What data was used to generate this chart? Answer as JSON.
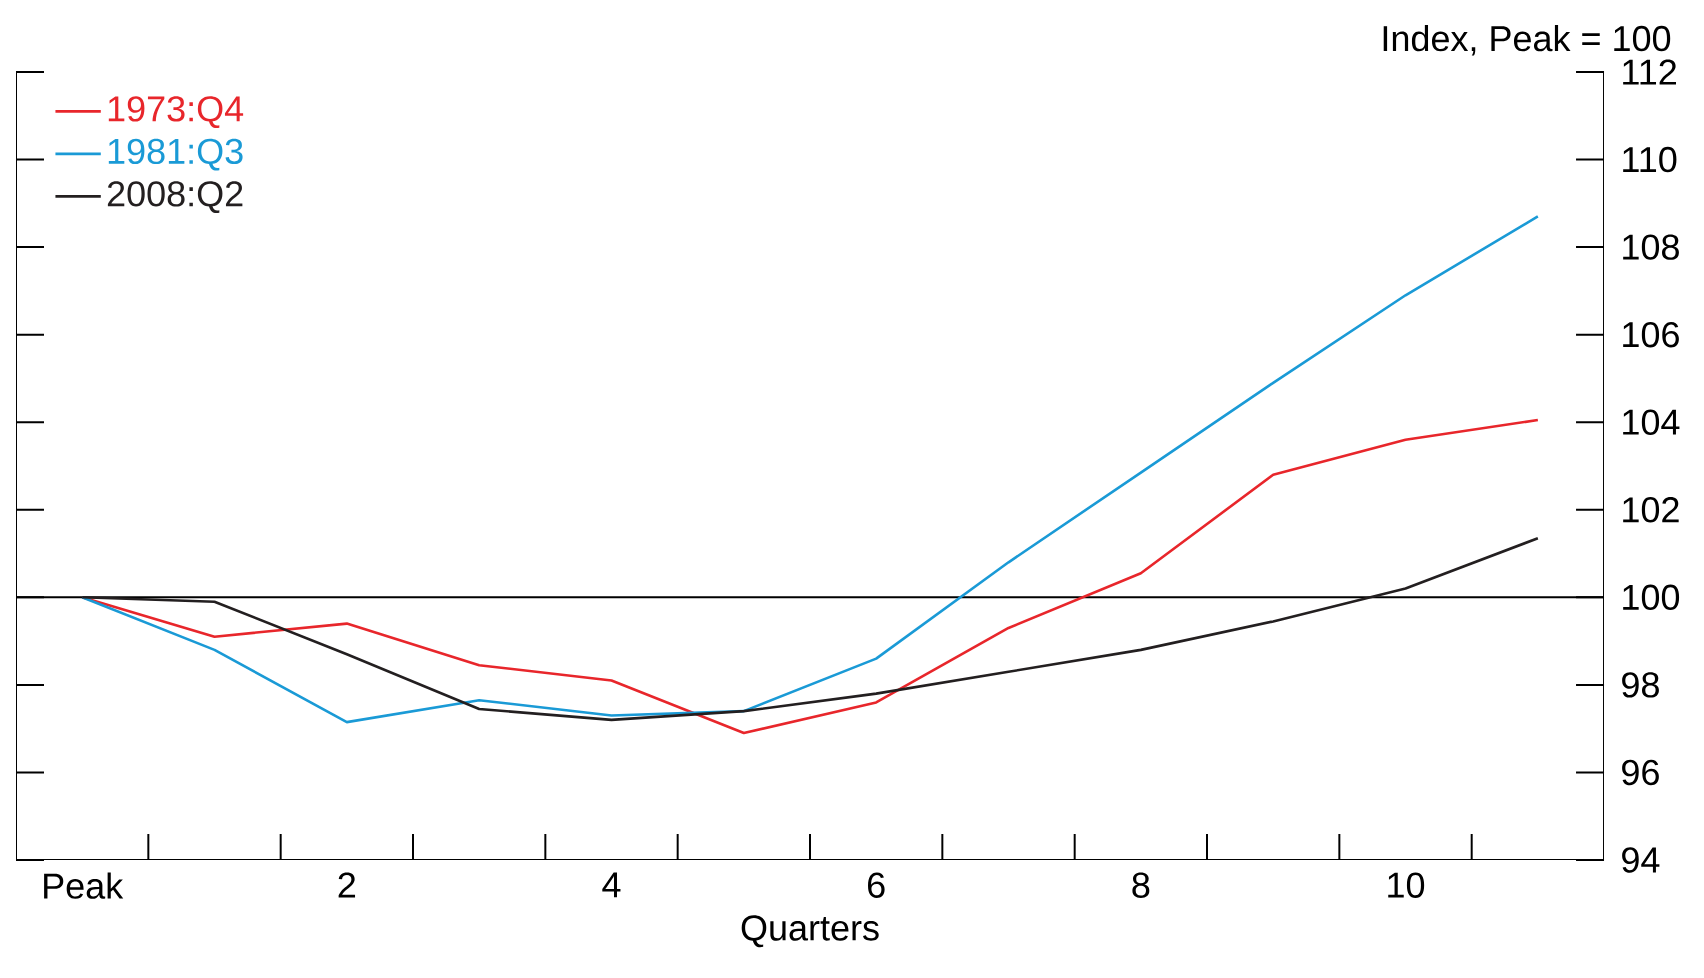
{
  "chart_data": {
    "type": "line",
    "xlabel": "Quarters",
    "ylabel": "Index, Peak = 100",
    "x": [
      0,
      1,
      2,
      3,
      4,
      5,
      6,
      7,
      8,
      9,
      10,
      11
    ],
    "series": [
      {
        "name": "1973:Q4",
        "color": "#e8262b",
        "values": [
          100,
          99.1,
          99.4,
          98.45,
          98.1,
          96.9,
          97.6,
          99.3,
          100.55,
          102.8,
          103.6,
          104.05
        ]
      },
      {
        "name": "1981:Q3",
        "color": "#1a9ad6",
        "values": [
          100,
          98.8,
          97.15,
          97.65,
          97.3,
          97.4,
          98.6,
          100.8,
          102.85,
          104.9,
          106.9,
          108.7
        ]
      },
      {
        "name": "2008:Q2",
        "color": "#231f20",
        "values": [
          100,
          99.9,
          98.7,
          97.45,
          97.2,
          97.4,
          97.8,
          98.3,
          98.8,
          99.45,
          100.2,
          101.35
        ]
      }
    ],
    "xlim": [
      -0.5,
      11.5
    ],
    "xticks": [
      {
        "value": 0,
        "label": "Peak"
      },
      {
        "value": 0.5,
        "label": null
      },
      {
        "value": 1.5,
        "label": null
      },
      2,
      {
        "value": 2.5,
        "label": null
      },
      {
        "value": 3.5,
        "label": null
      },
      4,
      {
        "value": 4.5,
        "label": null
      },
      {
        "value": 5.5,
        "label": null
      },
      6,
      {
        "value": 6.5,
        "label": null
      },
      {
        "value": 7.5,
        "label": null
      },
      8,
      {
        "value": 8.5,
        "label": null
      },
      {
        "value": 9.5,
        "label": null
      },
      10,
      {
        "value": 10.5,
        "label": null
      }
    ],
    "ylim": [
      94,
      112
    ],
    "yticks": [
      94,
      96,
      98,
      100,
      102,
      104,
      106,
      108,
      110,
      112
    ],
    "ref_lines": [
      {
        "axis": "y",
        "value": 100
      }
    ],
    "legend": "top left",
    "grid": false,
    "marker": "none",
    "line_style": "solid"
  }
}
